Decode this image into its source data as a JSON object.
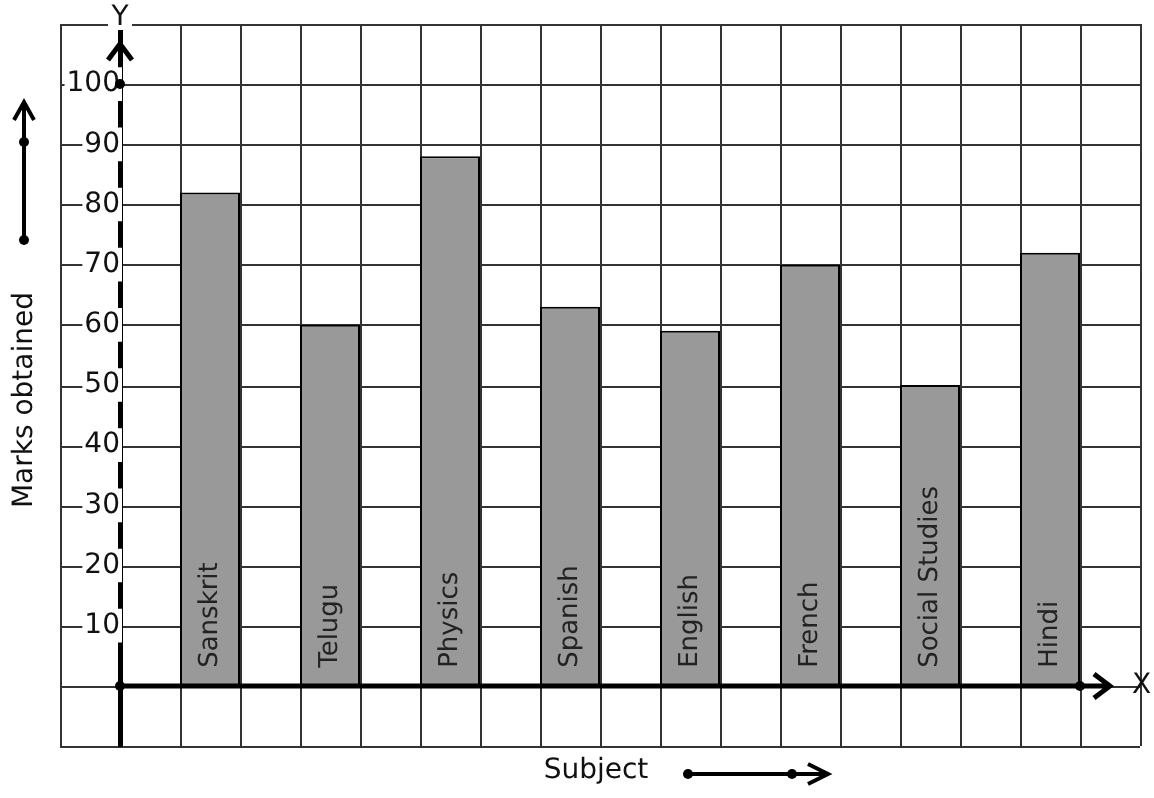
{
  "chart_data": {
    "type": "bar",
    "xlabel": "Subject",
    "ylabel": "Marks obtained",
    "categories": [
      "Sanskrit",
      "Telugu",
      "Physics",
      "Spanish",
      "English",
      "French",
      "Social Studies",
      "Hindi"
    ],
    "values": [
      82,
      60,
      88,
      63,
      59,
      70,
      50,
      72
    ],
    "color": "#999999",
    "ylim": [
      -10,
      110
    ],
    "yticks": [
      {
        "value": 0,
        "label": null
      },
      10,
      20,
      30,
      40,
      50,
      60,
      70,
      80,
      90,
      100
    ],
    "grid": true,
    "annotations": [
      "Y",
      "X"
    ]
  }
}
